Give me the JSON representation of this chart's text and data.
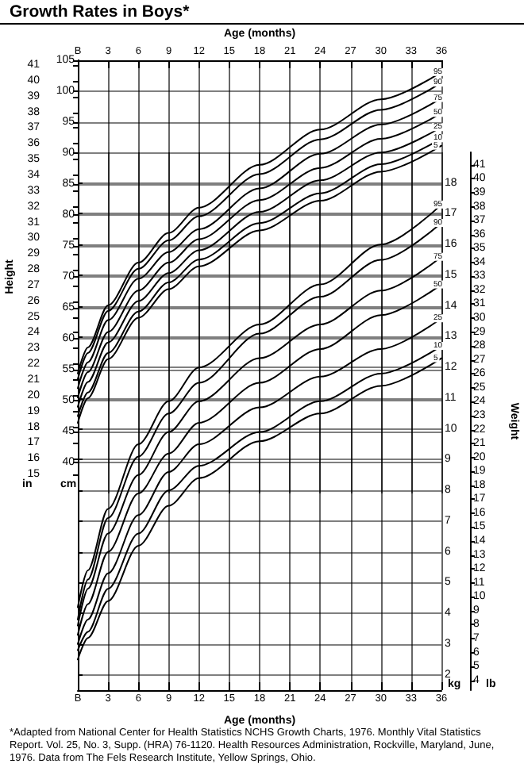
{
  "chart_data": [
    {
      "type": "line",
      "title": "Growth Rates in Boys*",
      "xlabel": "Age (months)",
      "ylabel": "Height",
      "xlim": [
        0,
        36
      ],
      "xticks": [
        {
          "value": 0,
          "label": "B"
        },
        3,
        6,
        9,
        12,
        15,
        18,
        21,
        24,
        27,
        30,
        33,
        36
      ],
      "x": [
        0,
        1,
        3,
        6,
        9,
        12,
        18,
        24,
        30,
        36
      ],
      "ylim": [
        13.8,
        41.3
      ],
      "yticks": [
        15,
        16,
        17,
        18,
        19,
        20,
        21,
        22,
        23,
        24,
        25,
        26,
        27,
        28,
        29,
        30,
        31,
        32,
        33,
        34,
        35,
        36,
        37,
        38,
        39,
        40,
        41
      ],
      "y2lim": [
        35,
        105
      ],
      "y2ticks": [
        40,
        45,
        50,
        55,
        60,
        65,
        70,
        75,
        80,
        85,
        90,
        95,
        100,
        105
      ],
      "grid": true,
      "marker": "none",
      "line_style": "solid",
      "series": [
        {
          "name": "95",
          "color": "#000000",
          "axis": "y2",
          "values": [
            54.4,
            58.6,
            65.4,
            72.3,
            77.1,
            81.2,
            88.1,
            93.8,
            98.7,
            103.1
          ]
        },
        {
          "name": "90",
          "color": "#000000",
          "axis": "y2",
          "values": [
            53.5,
            57.7,
            64.5,
            71.3,
            75.9,
            79.8,
            86.6,
            92.2,
            97.0,
            101.4
          ]
        },
        {
          "name": "75",
          "color": "#000000",
          "axis": "y2",
          "values": [
            52.0,
            56.2,
            63.0,
            69.7,
            74.0,
            77.7,
            84.3,
            89.9,
            94.6,
            98.9
          ]
        },
        {
          "name": "50",
          "color": "#000000",
          "axis": "y2",
          "values": [
            50.5,
            54.6,
            61.1,
            67.8,
            72.3,
            76.1,
            82.4,
            87.6,
            92.3,
            96.5
          ]
        },
        {
          "name": "25",
          "color": "#000000",
          "axis": "y2",
          "values": [
            49.0,
            53.0,
            59.4,
            66.1,
            70.6,
            74.3,
            80.5,
            85.6,
            90.1,
            94.2
          ]
        },
        {
          "name": "10",
          "color": "#000000",
          "axis": "y2",
          "values": [
            47.5,
            51.3,
            57.7,
            64.4,
            69.1,
            72.8,
            78.7,
            83.5,
            88.2,
            92.4
          ]
        },
        {
          "name": "5",
          "color": "#000000",
          "axis": "y2",
          "values": [
            46.4,
            50.4,
            56.7,
            63.4,
            68.0,
            71.7,
            77.5,
            82.3,
            87.0,
            91.2
          ]
        }
      ],
      "annotations": [
        "in",
        "cm"
      ]
    },
    {
      "type": "line",
      "xlabel": "Age (months)",
      "y2label": "Weight",
      "xlim": [
        0,
        36
      ],
      "xticks": [
        {
          "value": 0,
          "label": "B"
        },
        3,
        6,
        9,
        12,
        15,
        18,
        21,
        24,
        27,
        30,
        33,
        36
      ],
      "x": [
        0,
        1,
        3,
        6,
        9,
        12,
        18,
        24,
        30,
        36
      ],
      "ylim": [
        1.5,
        19
      ],
      "yticks": [
        2,
        3,
        4,
        5,
        6,
        7,
        8,
        9,
        10,
        11,
        12,
        13,
        14,
        15,
        16,
        17,
        18
      ],
      "y2lim": [
        3.3,
        41.9
      ],
      "y2ticks": [
        4,
        5,
        6,
        7,
        8,
        9,
        10,
        11,
        12,
        13,
        14,
        15,
        16,
        17,
        18,
        19,
        20,
        21,
        22,
        23,
        24,
        25,
        26,
        27,
        28,
        29,
        30,
        31,
        32,
        33,
        34,
        35,
        36,
        37,
        38,
        39,
        40,
        41
      ],
      "grid": true,
      "marker": "none",
      "line_style": "solid",
      "series": [
        {
          "name": "95",
          "color": "#000000",
          "values": [
            4.2,
            5.4,
            7.4,
            9.5,
            10.9,
            12.0,
            13.4,
            14.7,
            16.0,
            17.3
          ]
        },
        {
          "name": "90",
          "color": "#000000",
          "values": [
            3.8,
            5.1,
            7.1,
            9.1,
            10.5,
            11.5,
            13.1,
            14.3,
            15.5,
            16.7
          ]
        },
        {
          "name": "75",
          "color": "#000000",
          "values": [
            3.6,
            4.8,
            6.6,
            8.5,
            9.9,
            10.9,
            12.3,
            13.4,
            14.5,
            15.6
          ]
        },
        {
          "name": "50",
          "color": "#000000",
          "values": [
            3.3,
            4.3,
            6.0,
            7.9,
            9.2,
            10.2,
            11.5,
            12.6,
            13.7,
            14.7
          ]
        },
        {
          "name": "25",
          "color": "#000000",
          "values": [
            3.0,
            3.8,
            5.3,
            7.2,
            8.6,
            9.5,
            10.7,
            11.7,
            12.6,
            13.6
          ]
        },
        {
          "name": "10",
          "color": "#000000",
          "values": [
            2.8,
            3.4,
            4.8,
            6.6,
            8.0,
            8.8,
            9.9,
            10.9,
            11.8,
            12.7
          ]
        },
        {
          "name": "5",
          "color": "#000000",
          "values": [
            2.5,
            3.2,
            4.4,
            6.2,
            7.5,
            8.4,
            9.6,
            10.5,
            11.4,
            12.3
          ]
        }
      ],
      "annotations": [
        "kg",
        "lb",
        "*Adapted from National Center for Health Statistics NCHS Growth Charts, 1976. Monthly Vital Statistics Report. Vol. 25, No. 3, Supp. (HRA) 76-1120. Health Resources Administration, Rockville, Maryland, June, 1976. Data from The Fels Research Institute, Yellow Springs, Ohio."
      ]
    }
  ]
}
